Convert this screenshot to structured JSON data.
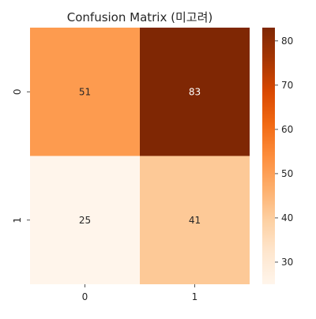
{
  "chart_data": {
    "type": "heatmap",
    "title": "Confusion Matrix (미고려)",
    "xlabel": "",
    "ylabel": "",
    "x_categories": [
      "0",
      "1"
    ],
    "y_categories": [
      "0",
      "1"
    ],
    "values": [
      [
        51,
        83
      ],
      [
        25,
        41
      ]
    ],
    "colormap": "Oranges",
    "colorbar": {
      "min": 25,
      "max": 83,
      "ticks": [
        30,
        40,
        50,
        60,
        70,
        80
      ],
      "tick_labels": [
        "30",
        "40",
        "50",
        "60",
        "70",
        "80"
      ],
      "placement": "right"
    },
    "annotated": true,
    "grid": false
  }
}
